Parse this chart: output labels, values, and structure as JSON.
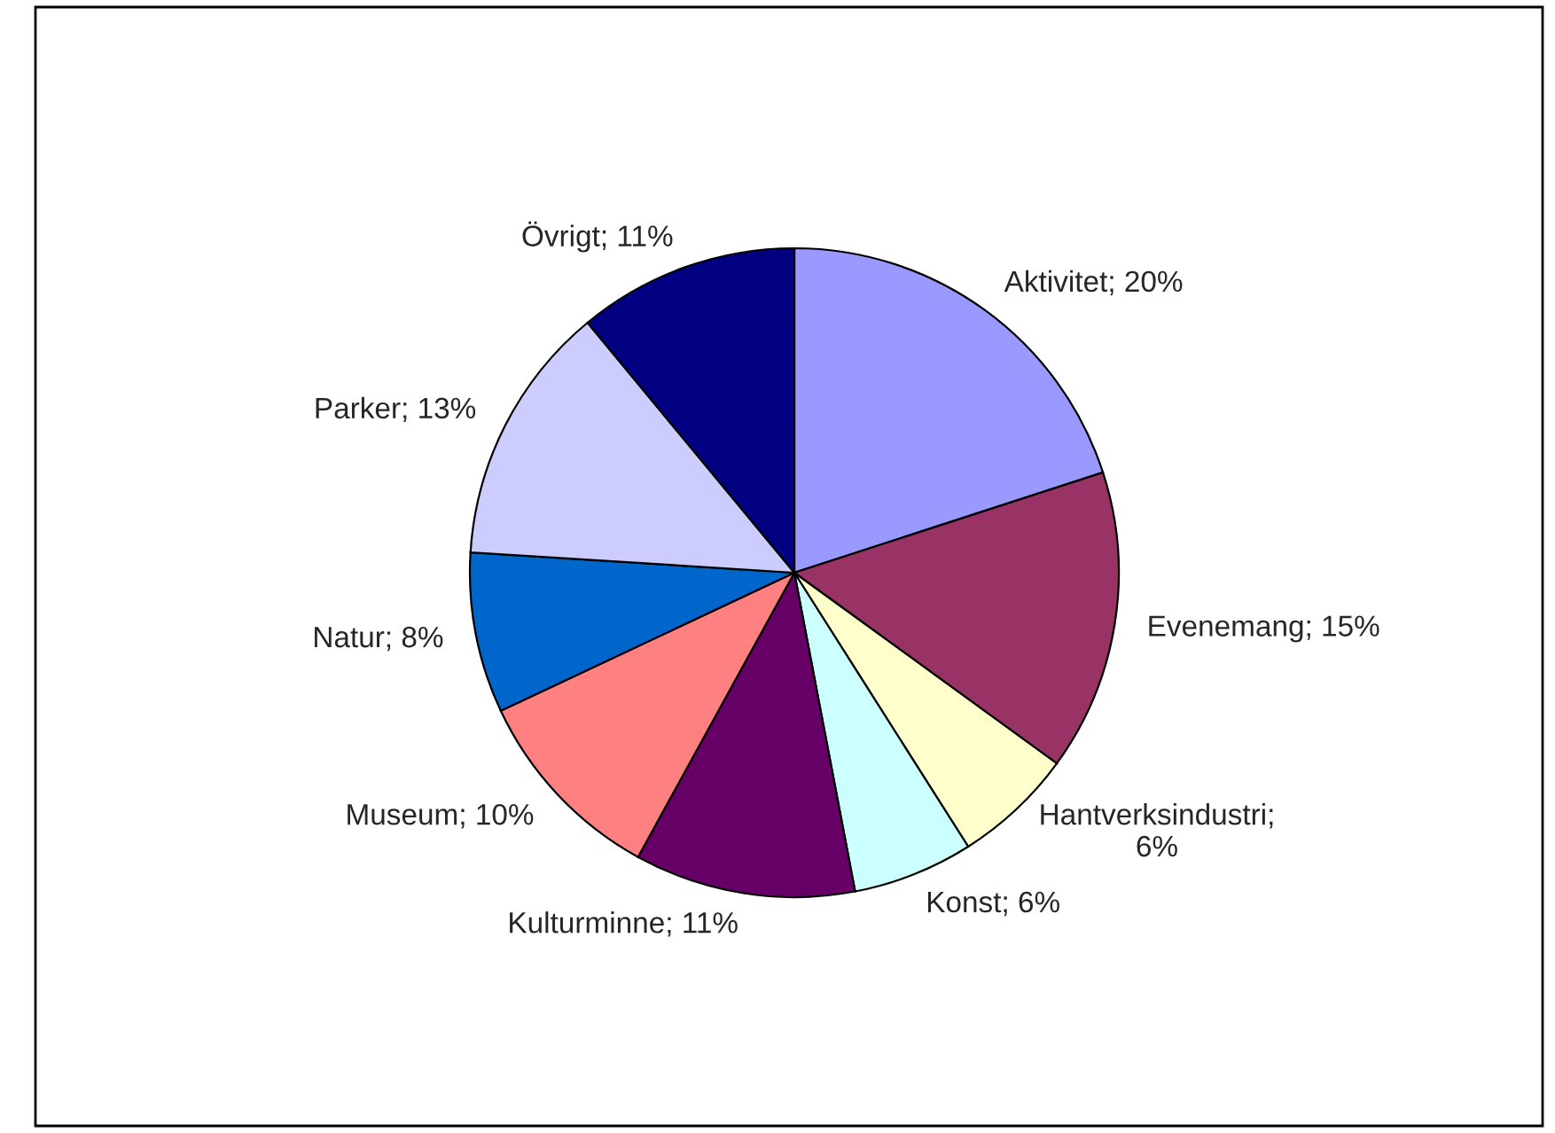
{
  "chart_data": {
    "type": "pie",
    "categories": [
      "Aktivitet; 20%",
      "Evenemang; 15%",
      "Hantverksindustri; 6%",
      "Konst; 6%",
      "Kulturminne; 11%",
      "Museum; 10%",
      "Natur; 8%",
      "Parker; 13%",
      "Övrigt; 11%"
    ],
    "values": [
      20,
      15,
      6,
      6,
      11,
      10,
      8,
      13,
      11
    ],
    "colors": [
      "#9999ff",
      "#993366",
      "#ffffcc",
      "#ccffff",
      "#660066",
      "#ff8080",
      "#0066cc",
      "#ccccff",
      "#000080"
    ],
    "legend": false
  }
}
